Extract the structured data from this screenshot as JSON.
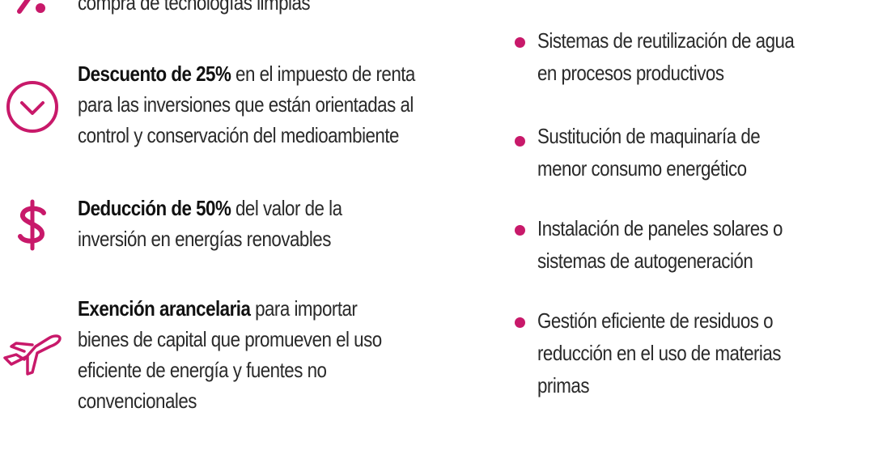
{
  "colors": {
    "accent": "#c8196a",
    "text": "#2a2a2a",
    "bold_text": "#111111"
  },
  "benefits": [
    {
      "icon": "percent-icon",
      "lines": [
        {
          "bold": "",
          "text": "compra de tecnologías limpias"
        }
      ]
    },
    {
      "icon": "chevron-down-circle-icon",
      "lines": [
        {
          "bold": "Descuento de 25%",
          "text": " en el impuesto de renta"
        },
        {
          "bold": "",
          "text": "para las inversiones que están orientadas al"
        },
        {
          "bold": "",
          "text": "control y conservación del medioambiente"
        }
      ]
    },
    {
      "icon": "dollar-icon",
      "lines": [
        {
          "bold": "Deducción de 50%",
          "text": " del valor de la"
        },
        {
          "bold": "",
          "text": "inversión en energías renovables"
        }
      ]
    },
    {
      "icon": "airplane-icon",
      "lines": [
        {
          "bold": "Exención arancelaria",
          "text": " para importar"
        },
        {
          "bold": "",
          "text": "bienes de capital que promueven el uso"
        },
        {
          "bold": "",
          "text": "eficiente de energía y fuentes no"
        },
        {
          "bold": "",
          "text": "convencionales"
        }
      ]
    }
  ],
  "investments": [
    {
      "lines": [
        "Sistemas de reutilización de agua",
        "en procesos productivos"
      ]
    },
    {
      "lines": [
        "Sustitución de maquinaría de",
        "menor consumo energético"
      ]
    },
    {
      "lines": [
        "Instalación de paneles solares o",
        "sistemas de autogeneración"
      ]
    },
    {
      "lines": [
        "Gestión eficiente de residuos o",
        "reducción en el uso de materias",
        "primas"
      ]
    }
  ]
}
